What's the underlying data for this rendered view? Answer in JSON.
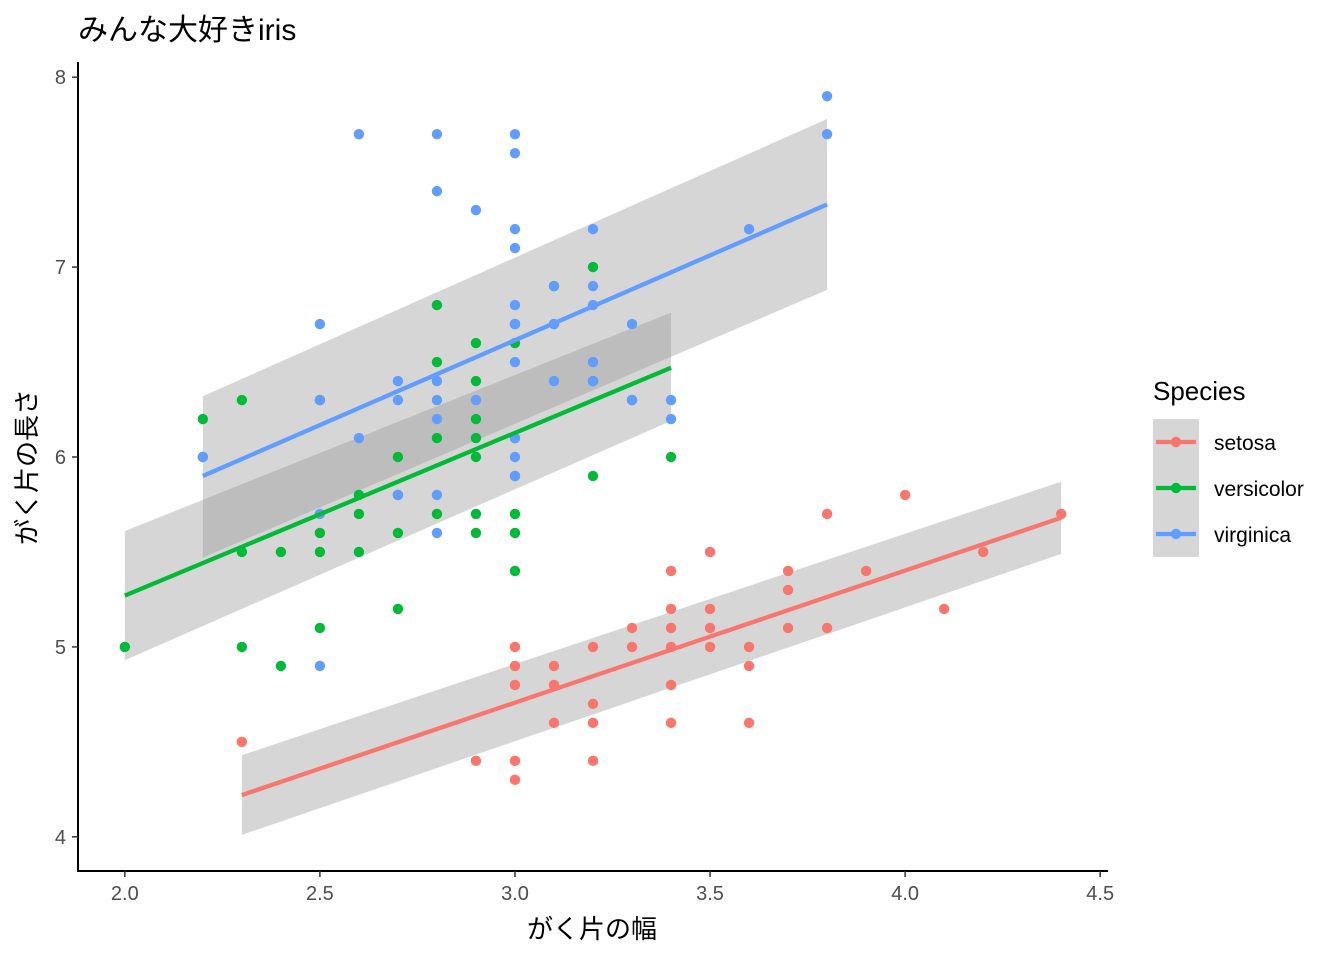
{
  "chart_data": {
    "type": "scatter",
    "title": "みんな大好きiris",
    "xlabel": "がく片の幅",
    "ylabel": "がく片の長さ",
    "xlim": [
      1.88,
      4.52
    ],
    "ylim": [
      3.82,
      8.08
    ],
    "xticks": [
      "2.0",
      "2.5",
      "3.0",
      "3.5",
      "4.0",
      "4.5"
    ],
    "yticks": [
      "4",
      "5",
      "6",
      "7",
      "8"
    ],
    "grid": false,
    "legend": {
      "title": "Species",
      "placement": "right"
    },
    "smooth": {
      "method": "linear regression",
      "confidence_band": true,
      "band_color": "#999999"
    },
    "series": [
      {
        "name": "setosa",
        "color": "#F8766D",
        "points": [
          [
            2.3,
            4.5
          ],
          [
            2.9,
            4.4
          ],
          [
            3.0,
            5.0
          ],
          [
            3.0,
            4.9
          ],
          [
            3.0,
            4.8
          ],
          [
            3.0,
            4.4
          ],
          [
            3.0,
            4.3
          ],
          [
            3.1,
            4.9
          ],
          [
            3.1,
            4.8
          ],
          [
            3.1,
            4.6
          ],
          [
            3.2,
            5.0
          ],
          [
            3.2,
            4.7
          ],
          [
            3.2,
            4.6
          ],
          [
            3.2,
            4.4
          ],
          [
            3.3,
            5.1
          ],
          [
            3.3,
            5.0
          ],
          [
            3.4,
            5.4
          ],
          [
            3.4,
            5.2
          ],
          [
            3.4,
            5.1
          ],
          [
            3.4,
            5.0
          ],
          [
            3.4,
            4.8
          ],
          [
            3.4,
            4.6
          ],
          [
            3.5,
            5.5
          ],
          [
            3.5,
            5.2
          ],
          [
            3.5,
            5.1
          ],
          [
            3.5,
            5.0
          ],
          [
            3.6,
            5.0
          ],
          [
            3.6,
            4.9
          ],
          [
            3.6,
            4.6
          ],
          [
            3.7,
            5.4
          ],
          [
            3.7,
            5.3
          ],
          [
            3.7,
            5.1
          ],
          [
            3.8,
            5.7
          ],
          [
            3.8,
            5.1
          ],
          [
            3.9,
            5.4
          ],
          [
            4.0,
            5.8
          ],
          [
            4.1,
            5.2
          ],
          [
            4.2,
            5.5
          ],
          [
            4.4,
            5.7
          ]
        ],
        "fit": {
          "x_range": [
            2.3,
            4.4
          ],
          "y_range": [
            4.22,
            5.68
          ],
          "band_low": [
            4.01,
            5.49
          ],
          "band_high": [
            4.43,
            5.87
          ]
        }
      },
      {
        "name": "versicolor",
        "color": "#00BA38",
        "points": [
          [
            2.0,
            5.0
          ],
          [
            2.2,
            6.2
          ],
          [
            2.2,
            6.0
          ],
          [
            2.3,
            6.3
          ],
          [
            2.3,
            5.5
          ],
          [
            2.3,
            5.0
          ],
          [
            2.4,
            5.5
          ],
          [
            2.4,
            4.9
          ],
          [
            2.5,
            6.3
          ],
          [
            2.5,
            5.6
          ],
          [
            2.5,
            5.5
          ],
          [
            2.5,
            5.1
          ],
          [
            2.6,
            5.8
          ],
          [
            2.6,
            5.7
          ],
          [
            2.6,
            5.5
          ],
          [
            2.7,
            6.0
          ],
          [
            2.7,
            5.8
          ],
          [
            2.7,
            5.6
          ],
          [
            2.7,
            5.2
          ],
          [
            2.8,
            6.8
          ],
          [
            2.8,
            6.5
          ],
          [
            2.8,
            6.1
          ],
          [
            2.8,
            5.7
          ],
          [
            2.9,
            6.6
          ],
          [
            2.9,
            6.4
          ],
          [
            2.9,
            6.2
          ],
          [
            2.9,
            6.1
          ],
          [
            2.9,
            6.0
          ],
          [
            2.9,
            5.7
          ],
          [
            2.9,
            5.6
          ],
          [
            3.0,
            6.7
          ],
          [
            3.0,
            6.6
          ],
          [
            3.0,
            6.1
          ],
          [
            3.0,
            5.9
          ],
          [
            3.0,
            5.7
          ],
          [
            3.0,
            5.6
          ],
          [
            3.0,
            5.4
          ],
          [
            3.1,
            6.9
          ],
          [
            3.1,
            6.7
          ],
          [
            3.2,
            7.0
          ],
          [
            3.2,
            6.4
          ],
          [
            3.2,
            5.9
          ],
          [
            3.3,
            6.3
          ],
          [
            3.4,
            6.0
          ]
        ],
        "fit": {
          "x_range": [
            2.0,
            3.4
          ],
          "y_range": [
            5.27,
            6.47
          ],
          "band_low": [
            4.93,
            6.19
          ],
          "band_high": [
            5.61,
            6.76
          ]
        }
      },
      {
        "name": "virginica",
        "color": "#619CFF",
        "points": [
          [
            2.2,
            6.0
          ],
          [
            2.5,
            6.7
          ],
          [
            2.5,
            6.3
          ],
          [
            2.5,
            5.7
          ],
          [
            2.5,
            4.9
          ],
          [
            2.6,
            7.7
          ],
          [
            2.6,
            6.1
          ],
          [
            2.7,
            6.4
          ],
          [
            2.7,
            6.3
          ],
          [
            2.7,
            5.8
          ],
          [
            2.8,
            7.7
          ],
          [
            2.8,
            7.4
          ],
          [
            2.8,
            6.4
          ],
          [
            2.8,
            6.3
          ],
          [
            2.8,
            6.2
          ],
          [
            2.8,
            5.8
          ],
          [
            2.8,
            5.6
          ],
          [
            2.9,
            7.3
          ],
          [
            2.9,
            6.3
          ],
          [
            3.0,
            7.7
          ],
          [
            3.0,
            7.6
          ],
          [
            3.0,
            7.2
          ],
          [
            3.0,
            7.1
          ],
          [
            3.0,
            6.8
          ],
          [
            3.0,
            6.7
          ],
          [
            3.0,
            6.5
          ],
          [
            3.0,
            6.1
          ],
          [
            3.0,
            6.0
          ],
          [
            3.0,
            5.9
          ],
          [
            3.1,
            6.9
          ],
          [
            3.1,
            6.7
          ],
          [
            3.1,
            6.4
          ],
          [
            3.2,
            7.2
          ],
          [
            3.2,
            6.9
          ],
          [
            3.2,
            6.8
          ],
          [
            3.2,
            6.5
          ],
          [
            3.2,
            6.4
          ],
          [
            3.3,
            6.7
          ],
          [
            3.3,
            6.3
          ],
          [
            3.4,
            6.3
          ],
          [
            3.4,
            6.2
          ],
          [
            3.6,
            7.2
          ],
          [
            3.8,
            7.9
          ],
          [
            3.8,
            7.7
          ]
        ],
        "fit": {
          "x_range": [
            2.2,
            3.8
          ],
          "y_range": [
            5.9,
            7.33
          ],
          "band_low": [
            5.47,
            6.88
          ],
          "band_high": [
            6.32,
            7.78
          ]
        }
      }
    ]
  }
}
